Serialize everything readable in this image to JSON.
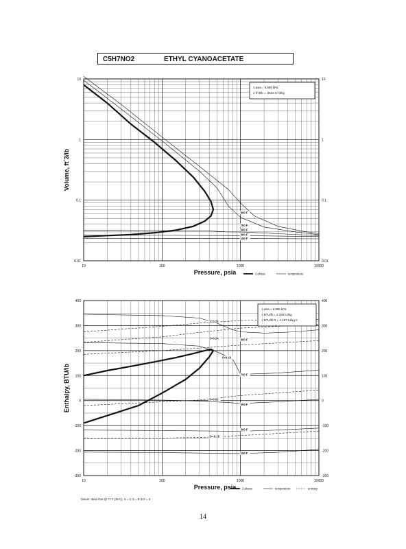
{
  "title": {
    "formula": "C5H7NO2",
    "name": "ETHYL CYANOACETATE"
  },
  "page_number": "14",
  "datum_note": "Datum: Ideal Gas @ 77 F (25 C), H = 0, S = R ln P = 0",
  "chart_data": [
    {
      "type": "line",
      "xlabel": "Pressure,  psia",
      "ylabel": "Volume, ft^3/lb",
      "x_scale": "log",
      "y_scale": "log",
      "xlim": [
        10,
        10000
      ],
      "ylim": [
        0.01,
        10
      ],
      "x_ticks": [
        "10",
        "100",
        "1000",
        "10000"
      ],
      "y_ticks": [
        "0.01",
        "0.1",
        "1",
        "10"
      ],
      "grid": true,
      "legend": {
        "position": "bottom-right",
        "entries": [
          "2 phase",
          "temperature"
        ]
      },
      "conversion_box": [
        "1 psia  =  6.895 kPa",
        "1 ft^3/lb  =  .0624 m^3/kg"
      ],
      "series": [
        {
          "name": "2 phase",
          "style": "heavy",
          "x": [
            10,
            20,
            40,
            80,
            150,
            250,
            350,
            420,
            450,
            420,
            350,
            250,
            150,
            80,
            40,
            20,
            10
          ],
          "y": [
            8,
            4,
            1.8,
            0.9,
            0.45,
            0.24,
            0.14,
            0.095,
            0.07,
            0.055,
            0.045,
            0.037,
            0.032,
            0.029,
            0.027,
            0.026,
            0.025
          ]
        },
        {
          "name": "900 F",
          "style": "temperature",
          "x": [
            10,
            30,
            100,
            300,
            700,
            1000,
            1500,
            3000,
            6000,
            10000
          ],
          "y": [
            11,
            3.8,
            1.1,
            0.36,
            0.15,
            0.09,
            0.055,
            0.037,
            0.031,
            0.028
          ]
        },
        {
          "name": "700 F",
          "style": "temperature",
          "x": [
            10,
            30,
            100,
            300,
            500,
            700,
            1000,
            2000,
            5000,
            10000
          ],
          "y": [
            9.5,
            3.2,
            0.95,
            0.3,
            0.16,
            0.08,
            0.052,
            0.036,
            0.03,
            0.027
          ]
        },
        {
          "name": "500 F",
          "style": "temperature",
          "x": [
            10,
            400,
            700,
            1000,
            3000,
            10000
          ],
          "y": [
            0.032,
            0.031,
            0.03,
            0.03,
            0.028,
            0.026
          ]
        },
        {
          "name": "300 F",
          "style": "temperature",
          "x": [
            10,
            1000,
            10000
          ],
          "y": [
            0.0265,
            0.026,
            0.025
          ]
        },
        {
          "name": "150 F",
          "style": "temperature",
          "x": [
            10,
            1000,
            10000
          ],
          "y": [
            0.0235,
            0.0233,
            0.023
          ]
        }
      ],
      "annotations": [
        {
          "text": "900 F",
          "x": 1000,
          "y": 0.06
        },
        {
          "text": "700 F",
          "x": 1000,
          "y": 0.037
        },
        {
          "text": "500 F",
          "x": 1000,
          "y": 0.031
        },
        {
          "text": "300 F",
          "x": 1000,
          "y": 0.026
        },
        {
          "text": "150 F",
          "x": 1000,
          "y": 0.0225
        }
      ]
    },
    {
      "type": "line",
      "xlabel": "Pressure,  psia",
      "ylabel": "Enthalpy, BTU/lb",
      "x_scale": "log",
      "y_scale": "linear",
      "xlim": [
        10,
        10000
      ],
      "ylim": [
        -300,
        400
      ],
      "x_ticks": [
        "10",
        "100",
        "1000",
        "10000"
      ],
      "y_ticks": [
        "-300",
        "-200",
        "-100",
        "0",
        "100",
        "200",
        "300",
        "400"
      ],
      "grid": true,
      "legend": {
        "position": "bottom-right",
        "entries": [
          "2 phase",
          "temperature",
          "entropy"
        ]
      },
      "conversion_box": [
        "1 psia  =  6.895 kPa",
        "1 BTU/lb  =  2.326 kJ/kg",
        "1 BTU/lb R  =  4.187 kJ/kg K"
      ],
      "series": [
        {
          "name": "2 phase",
          "style": "heavy",
          "x": [
            10,
            20,
            40,
            80,
            150,
            250,
            350,
            420,
            450,
            400,
            300,
            200,
            100,
            50,
            20,
            10
          ],
          "y": [
            100,
            120,
            137,
            155,
            172,
            188,
            200,
            205,
            200,
            175,
            130,
            85,
            30,
            -20,
            -60,
            -90
          ]
        },
        {
          "name": "900 F",
          "style": "temperature",
          "x": [
            10,
            100,
            300,
            500,
            800,
            1000,
            2000,
            5000,
            10000
          ],
          "y": [
            345,
            340,
            330,
            310,
            283,
            275,
            270,
            275,
            283
          ]
        },
        {
          "name": "700 F",
          "style": "temperature",
          "x": [
            10,
            100,
            300,
            500,
            800,
            1000,
            3000,
            10000
          ],
          "y": [
            232,
            228,
            218,
            195,
            165,
            105,
            110,
            122
          ]
        },
        {
          "name": "500 F",
          "style": "temperature",
          "x": [
            10,
            100,
            300,
            700,
            1000,
            3000,
            10000
          ],
          "y": [
            5,
            2,
            -2,
            -8,
            -12,
            -5,
            5
          ]
        },
        {
          "name": "300 F",
          "style": "temperature",
          "x": [
            10,
            100,
            1000,
            3000,
            10000
          ],
          "y": [
            -118,
            -120,
            -123,
            -118,
            -110
          ]
        },
        {
          "name": "150 F",
          "style": "temperature",
          "x": [
            10,
            100,
            1000,
            3000,
            10000
          ],
          "y": [
            -206,
            -208,
            -212,
            -207,
            -195
          ]
        },
        {
          "name": "S=0.28",
          "style": "entropy",
          "x": [
            10,
            100,
            300,
            1000,
            10000
          ],
          "y": [
            275,
            297,
            310,
            320,
            325
          ]
        },
        {
          "name": "S=0.24",
          "style": "entropy",
          "x": [
            10,
            100,
            300,
            1000,
            10000
          ],
          "y": [
            233,
            255,
            273,
            290,
            305
          ]
        },
        {
          "name": "S=0.19",
          "style": "entropy",
          "x": [
            10,
            100,
            300,
            1000,
            10000
          ],
          "y": [
            185,
            200,
            210,
            222,
            240
          ]
        },
        {
          "name": "S=0.02",
          "style": "entropy",
          "x": [
            10,
            100,
            300,
            1000,
            10000
          ],
          "y": [
            -20,
            -5,
            2,
            20,
            42
          ]
        },
        {
          "name": "S=-0.15",
          "style": "entropy",
          "x": [
            10,
            100,
            300,
            1000,
            10000
          ],
          "y": [
            -152,
            -150,
            -148,
            -140,
            -122
          ]
        }
      ],
      "annotations": [
        {
          "text": "S=0.28",
          "x": 400,
          "y": 312
        },
        {
          "text": "S=0.24",
          "x": 400,
          "y": 245
        },
        {
          "text": "S=0.19",
          "x": 580,
          "y": 168
        },
        {
          "text": "S=0.02",
          "x": 400,
          "y": 0
        },
        {
          "text": "S=-0.15",
          "x": 400,
          "y": -148
        },
        {
          "text": "900 F",
          "x": 1000,
          "y": 240
        },
        {
          "text": "700 F",
          "x": 1000,
          "y": 100
        },
        {
          "text": "500 F",
          "x": 1000,
          "y": -20
        },
        {
          "text": "300 F",
          "x": 1000,
          "y": -120
        },
        {
          "text": "150 F",
          "x": 1000,
          "y": -215
        }
      ]
    }
  ]
}
